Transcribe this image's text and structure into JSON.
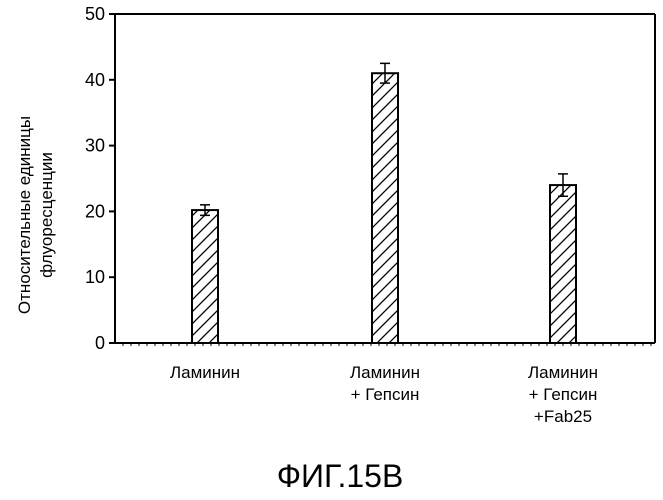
{
  "chart_data": {
    "type": "bar",
    "categories": [
      [
        "Ламинин"
      ],
      [
        "Ламинин",
        "+ Гепсин"
      ],
      [
        "Ламинин",
        "+ Гепсин",
        "+Fab25"
      ]
    ],
    "values": [
      20.2,
      41.0,
      24.0
    ],
    "error": [
      0.8,
      1.5,
      1.7
    ],
    "ylabel": [
      "Относительные единицы",
      "флуоресценции"
    ],
    "ylim": [
      0,
      50
    ],
    "yticks": [
      0,
      10,
      20,
      30,
      40,
      50
    ],
    "grid": false,
    "pattern": "diagonal-hatch",
    "bar_color": "#ffffff",
    "line_color": "#000000"
  },
  "caption": "ФИГ.15B"
}
